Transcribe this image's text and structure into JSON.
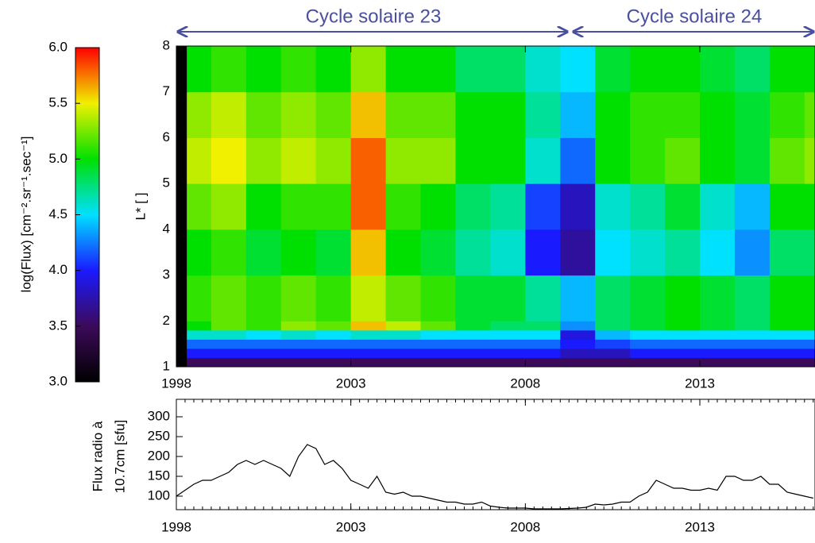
{
  "chart_data": [
    {
      "type": "heatmap",
      "annotations": [
        "Cycle solaire 23",
        "Cycle solaire 24"
      ],
      "ylabel": "L* [ ]",
      "clabel": "log(Flux) [cm⁻².sr⁻¹.sec⁻¹]",
      "xlim": [
        1998,
        2016.3
      ],
      "xticks": [
        1998,
        2003,
        2008,
        2013
      ],
      "ylim": [
        1,
        8
      ],
      "yticks": [
        1,
        2,
        3,
        4,
        5,
        6,
        7,
        8
      ],
      "clim": [
        3,
        6
      ],
      "cticks": [
        {
          "value": 3,
          "label": "3.0"
        },
        {
          "value": 3.5,
          "label": "3.5"
        },
        {
          "value": 4,
          "label": "4.0"
        },
        {
          "value": 4.5,
          "label": "4.5"
        },
        {
          "value": 5,
          "label": "5.0"
        },
        {
          "value": 5.5,
          "label": "5.5"
        },
        {
          "value": 6,
          "label": "6.0"
        }
      ],
      "colormap": [
        "#000000",
        "#3c0a5a",
        "#1a1aff",
        "#00e0ff",
        "#00e000",
        "#f0f000",
        "#ff0000"
      ],
      "x_edges": [
        1998,
        1998.3,
        1999,
        2000,
        2001,
        2002,
        2003,
        2004,
        2005,
        2006,
        2007,
        2008,
        2009,
        2010,
        2011,
        2012,
        2013,
        2014,
        2015,
        2016,
        2016.3
      ],
      "y_edges": [
        1,
        1.2,
        1.4,
        1.6,
        1.8,
        2,
        3,
        4,
        5,
        6,
        7,
        8
      ],
      "z": [
        [
          null,
          3.5,
          3.5,
          3.5,
          3.5,
          3.5,
          3.5,
          3.5,
          3.5,
          3.5,
          3.5,
          3.5,
          3.5,
          3.5,
          3.5,
          3.5,
          3.5,
          3.5,
          3.5,
          3.5
        ],
        [
          null,
          4.0,
          4.0,
          4.0,
          4.0,
          4.0,
          4.0,
          4.0,
          4.0,
          4.0,
          4.0,
          4.0,
          3.8,
          3.8,
          4.0,
          4.0,
          4.0,
          4.0,
          4.0,
          4.0
        ],
        [
          null,
          4.2,
          4.2,
          4.2,
          4.2,
          4.2,
          4.2,
          4.2,
          4.2,
          4.2,
          4.2,
          4.2,
          4.0,
          4.1,
          4.2,
          4.2,
          4.2,
          4.2,
          4.2,
          4.2
        ],
        [
          null,
          4.6,
          4.6,
          4.5,
          4.6,
          4.5,
          4.6,
          4.6,
          4.5,
          4.5,
          4.5,
          4.5,
          3.9,
          4.4,
          4.5,
          4.5,
          4.5,
          4.5,
          4.5,
          4.5
        ],
        [
          null,
          5.0,
          5.2,
          5.1,
          5.3,
          5.2,
          5.6,
          5.4,
          5.2,
          4.9,
          4.8,
          4.8,
          4.3,
          4.8,
          4.9,
          5.0,
          4.9,
          4.8,
          5.0,
          5.0
        ],
        [
          null,
          5.1,
          5.2,
          5.1,
          5.2,
          5.1,
          5.4,
          5.2,
          5.1,
          4.9,
          4.9,
          4.7,
          4.4,
          4.8,
          4.9,
          5.0,
          4.9,
          4.8,
          5.0,
          5.0
        ],
        [
          null,
          5.0,
          5.1,
          4.9,
          5.0,
          4.9,
          5.6,
          5.0,
          4.9,
          4.7,
          4.6,
          4.0,
          3.7,
          4.5,
          4.6,
          4.7,
          4.5,
          4.3,
          4.8,
          4.8
        ],
        [
          null,
          5.2,
          5.3,
          5.0,
          5.1,
          5.1,
          5.8,
          5.1,
          5.0,
          4.8,
          4.7,
          4.1,
          3.8,
          4.6,
          4.7,
          4.9,
          4.6,
          4.4,
          5.0,
          5.0
        ],
        [
          null,
          5.4,
          5.5,
          5.3,
          5.4,
          5.3,
          5.8,
          5.3,
          5.3,
          5.0,
          5.0,
          4.6,
          4.2,
          5.0,
          5.1,
          5.2,
          5.0,
          4.9,
          5.2,
          5.3
        ],
        [
          null,
          5.3,
          5.4,
          5.2,
          5.3,
          5.2,
          5.6,
          5.2,
          5.2,
          5.0,
          5.0,
          4.7,
          4.4,
          5.0,
          5.1,
          5.1,
          5.0,
          4.9,
          5.1,
          5.2
        ],
        [
          null,
          5.0,
          5.1,
          5.0,
          5.1,
          5.0,
          5.3,
          5.0,
          5.0,
          4.8,
          4.8,
          4.6,
          4.5,
          4.9,
          5.0,
          5.0,
          4.9,
          4.8,
          5.0,
          5.0
        ]
      ]
    },
    {
      "type": "line",
      "ylabel": [
        "Flux radio à",
        "10.7cm [sfu]"
      ],
      "xlim": [
        1998,
        2016.3
      ],
      "xticks": [
        1998,
        2003,
        2008,
        2013
      ],
      "ylim": [
        66,
        344
      ],
      "yticks": [
        100,
        150,
        200,
        250,
        300
      ],
      "color": "#000000",
      "x": [
        1998,
        1998.25,
        1998.5,
        1998.75,
        1999,
        1999.25,
        1999.5,
        1999.75,
        2000,
        2000.25,
        2000.5,
        2000.75,
        2001,
        2001.25,
        2001.5,
        2001.75,
        2002,
        2002.25,
        2002.5,
        2002.75,
        2003,
        2003.25,
        2003.5,
        2003.75,
        2004,
        2004.25,
        2004.5,
        2004.75,
        2005,
        2005.25,
        2005.5,
        2005.75,
        2006,
        2006.25,
        2006.5,
        2006.75,
        2007,
        2007.25,
        2007.5,
        2007.75,
        2008,
        2008.25,
        2008.5,
        2008.75,
        2009,
        2009.25,
        2009.5,
        2009.75,
        2010,
        2010.25,
        2010.5,
        2010.75,
        2011,
        2011.25,
        2011.5,
        2011.75,
        2012,
        2012.25,
        2012.5,
        2012.75,
        2013,
        2013.25,
        2013.5,
        2013.75,
        2014,
        2014.25,
        2014.5,
        2014.75,
        2015,
        2015.25,
        2015.5,
        2015.75,
        2016,
        2016.25
      ],
      "values": [
        100,
        115,
        130,
        140,
        140,
        150,
        160,
        180,
        190,
        180,
        190,
        180,
        170,
        150,
        200,
        230,
        220,
        180,
        190,
        170,
        140,
        130,
        120,
        150,
        110,
        105,
        110,
        100,
        100,
        95,
        90,
        85,
        85,
        80,
        80,
        85,
        75,
        72,
        70,
        70,
        70,
        68,
        68,
        68,
        68,
        69,
        70,
        72,
        80,
        78,
        80,
        85,
        85,
        100,
        110,
        140,
        130,
        120,
        120,
        115,
        115,
        120,
        115,
        150,
        150,
        140,
        140,
        150,
        130,
        130,
        110,
        105,
        100,
        95
      ]
    }
  ]
}
